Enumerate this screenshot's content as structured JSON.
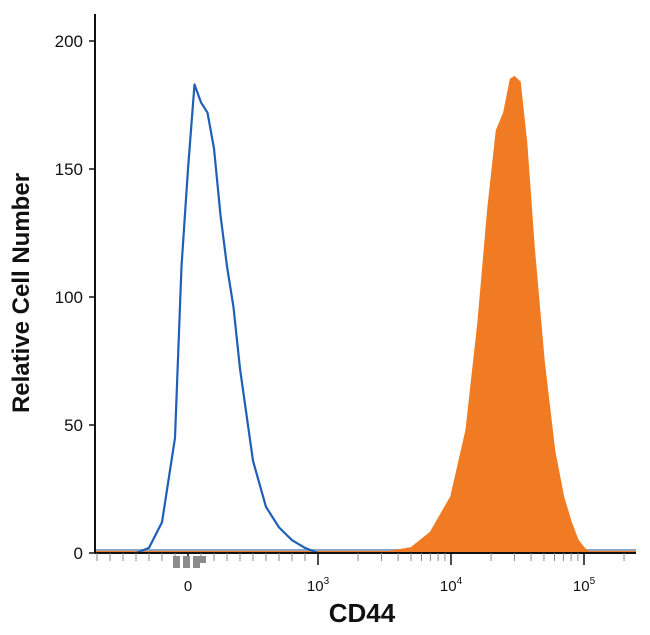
{
  "chart_data": {
    "type": "area",
    "title": "",
    "xlabel": "CD44",
    "ylabel": "Relative Cell Number",
    "ylim": [
      0,
      210
    ],
    "yticks": [
      "0",
      "50",
      "100",
      "150",
      "200"
    ],
    "x_scale": "biexponential",
    "xticks": [
      {
        "base": "0",
        "exp": ""
      },
      {
        "base": "10",
        "exp": "3"
      },
      {
        "base": "10",
        "exp": "4"
      },
      {
        "base": "10",
        "exp": "5"
      }
    ],
    "grid": false,
    "legend": "none",
    "series": [
      {
        "style": "outline",
        "color": "#1f5fb8",
        "x": [
          -400,
          -300,
          -200,
          -100,
          -50,
          0,
          50,
          100,
          150,
          200,
          250,
          300,
          350,
          400,
          500,
          600,
          700,
          800,
          900,
          1000
        ],
        "y": [
          0,
          2,
          12,
          45,
          112,
          150,
          183,
          176,
          172,
          158,
          132,
          112,
          96,
          72,
          36,
          18,
          10,
          5,
          2,
          0
        ]
      },
      {
        "style": "filled",
        "color": "#f07b22",
        "x": [
          3000,
          5000,
          7000,
          10000,
          13000,
          16000,
          19000,
          22000,
          25000,
          28000,
          30000,
          33000,
          37000,
          42000,
          50000,
          60000,
          70000,
          80000,
          90000,
          100000,
          110000
        ],
        "y": [
          0,
          2,
          8,
          22,
          48,
          90,
          135,
          165,
          172,
          185,
          186,
          184,
          160,
          120,
          75,
          40,
          22,
          12,
          5,
          2,
          0
        ]
      }
    ],
    "baseline_colors": [
      "#f07b22",
      "#8fa6c8"
    ]
  }
}
